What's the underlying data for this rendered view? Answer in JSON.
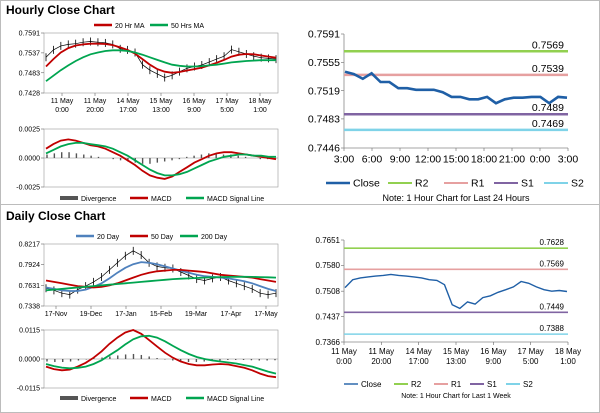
{
  "hourly_title": "Hourly Close Chart",
  "daily_title": "Daily Close Chart",
  "chart_data": [
    {
      "id": "hourly-price",
      "type": "line",
      "legend": [
        "20 Hr MA",
        "50 Hrs MA"
      ],
      "y_ticks": [
        "0.7591",
        "0.7537",
        "0.7483",
        "0.7428"
      ],
      "ylim": [
        0.7428,
        0.7591
      ],
      "x_ticks": [
        [
          "11 May",
          "0:00"
        ],
        [
          "11 May",
          "20:00"
        ],
        [
          "14 May",
          "17:00"
        ],
        [
          "15 May",
          "13:00"
        ],
        [
          "16 May",
          "9:00"
        ],
        [
          "17 May",
          "5:00"
        ],
        [
          "18 May",
          "1:00"
        ]
      ],
      "series": [
        {
          "name": "Close",
          "color": "#000000",
          "values": [
            0.7525,
            0.7545,
            0.7556,
            0.756,
            0.7562,
            0.7566,
            0.7568,
            0.7566,
            0.7564,
            0.756,
            0.7548,
            0.7545,
            0.7538,
            0.7505,
            0.749,
            0.748,
            0.747,
            0.7476,
            0.7486,
            0.7495,
            0.75,
            0.7504,
            0.7512,
            0.752,
            0.7528,
            0.7546,
            0.754,
            0.7534,
            0.7528,
            0.7524,
            0.7522,
            0.752
          ]
        },
        {
          "name": "20 Hr MA",
          "color": "#c00000",
          "values": [
            0.75,
            0.752,
            0.7538,
            0.755,
            0.7557,
            0.756,
            0.7562,
            0.7562,
            0.7561,
            0.7558,
            0.7552,
            0.7545,
            0.7535,
            0.752,
            0.7505,
            0.7493,
            0.7486,
            0.7483,
            0.7485,
            0.7489,
            0.7493,
            0.7497,
            0.7503,
            0.751,
            0.7518,
            0.7527,
            0.7532,
            0.7534,
            0.7533,
            0.753,
            0.7527,
            0.7524
          ]
        },
        {
          "name": "50 Hrs MA",
          "color": "#00a550",
          "values": [
            0.746,
            0.7475,
            0.749,
            0.7503,
            0.7515,
            0.7525,
            0.7533,
            0.7538,
            0.7542,
            0.7544,
            0.7544,
            0.7542,
            0.7538,
            0.7532,
            0.7525,
            0.7518,
            0.7511,
            0.7505,
            0.7502,
            0.75,
            0.75,
            0.7501,
            0.7503,
            0.7505,
            0.7508,
            0.7511,
            0.7513,
            0.7515,
            0.7516,
            0.7517,
            0.7517,
            0.7517
          ]
        }
      ]
    },
    {
      "id": "hourly-macd",
      "type": "line",
      "y_ticks": [
        "0.0025",
        "0.0000",
        "-0.0025"
      ],
      "ylim": [
        -0.0025,
        0.0025
      ],
      "legend": [
        "Divergence",
        "MACD",
        "MACD Signal Line"
      ],
      "histogram": [
        0.0003,
        0.0004,
        0.0005,
        0.0005,
        0.0004,
        0.0003,
        0.0002,
        0.0001,
        0.0,
        -0.0001,
        -0.0002,
        -0.0003,
        -0.0004,
        -0.0005,
        -0.0005,
        -0.0004,
        -0.0003,
        -0.0002,
        -0.0001,
        0.0001,
        0.0002,
        0.0003,
        0.0004,
        0.0004,
        0.0003,
        0.0003,
        0.0002,
        0.0001,
        0.0,
        -0.0001,
        -0.0001,
        -0.0001
      ],
      "series": [
        {
          "name": "MACD",
          "color": "#c00000",
          "values": [
            0.0008,
            0.0012,
            0.0015,
            0.0016,
            0.0015,
            0.0013,
            0.0011,
            0.001,
            0.0008,
            0.0005,
            0.0002,
            -0.0002,
            -0.0006,
            -0.0011,
            -0.0015,
            -0.0017,
            -0.0018,
            -0.0016,
            -0.0012,
            -0.0008,
            -0.0004,
            -0.0001,
            0.0002,
            0.0004,
            0.0005,
            0.0005,
            0.0004,
            0.0003,
            0.0002,
            0.0001,
            0.0,
            -0.0001
          ]
        },
        {
          "name": "MACD Signal Line",
          "color": "#00a550",
          "values": [
            0.0004,
            0.0007,
            0.001,
            0.0012,
            0.0013,
            0.0013,
            0.0012,
            0.0011,
            0.001,
            0.0008,
            0.0005,
            0.0002,
            -0.0002,
            -0.0006,
            -0.001,
            -0.0013,
            -0.0015,
            -0.0015,
            -0.0014,
            -0.0012,
            -0.0009,
            -0.0006,
            -0.0003,
            -0.0001,
            0.0001,
            0.0002,
            0.0003,
            0.0003,
            0.0002,
            0.0002,
            0.0001,
            0.0001
          ]
        }
      ]
    },
    {
      "id": "hourly-24h",
      "type": "line",
      "y_ticks": [
        "0.7591",
        "0.7555",
        "0.7519",
        "0.7483",
        "0.7446"
      ],
      "ylim": [
        0.7446,
        0.7591
      ],
      "x_ticks": [
        "3:00",
        "6:00",
        "9:00",
        "12:00",
        "15:00",
        "18:00",
        "21:00",
        "0:00",
        "3:00"
      ],
      "levels": [
        {
          "name": "R2",
          "value": 0.7569,
          "label": "0.7569",
          "color": "#92d050"
        },
        {
          "name": "R1",
          "value": 0.7539,
          "label": "0.7539",
          "color": "#e6a0a0"
        },
        {
          "name": "S1",
          "value": 0.7489,
          "label": "0.7489",
          "color": "#8064a2"
        },
        {
          "name": "S2",
          "value": 0.7469,
          "label": "0.7469",
          "color": "#7fd3e8"
        }
      ],
      "series": [
        {
          "name": "Close",
          "color": "#1f5fa6",
          "values": [
            0.7543,
            0.754,
            0.7534,
            0.7541,
            0.753,
            0.753,
            0.7522,
            0.7522,
            0.752,
            0.752,
            0.752,
            0.7517,
            0.7511,
            0.7511,
            0.7508,
            0.7508,
            0.7511,
            0.7503,
            0.7508,
            0.751,
            0.751,
            0.7511,
            0.7511,
            0.7503,
            0.7511,
            0.751
          ]
        }
      ],
      "legend": [
        "Close",
        "R2",
        "R1",
        "S1",
        "S2"
      ],
      "note": "Note: 1 Hour Chart for Last 24 Hours"
    },
    {
      "id": "daily-price",
      "type": "line",
      "legend": [
        "20 Day",
        "50 Day",
        "200 Day"
      ],
      "y_ticks": [
        "0.8217",
        "0.7924",
        "0.7631",
        "0.7338"
      ],
      "ylim": [
        0.7338,
        0.8217
      ],
      "x_ticks": [
        "17-Nov",
        "19-Dec",
        "17-Jan",
        "15-Feb",
        "19-Mar",
        "17-Apr",
        "17-May"
      ],
      "series": [
        {
          "name": "Close",
          "color": "#000000",
          "values": [
            0.759,
            0.756,
            0.752,
            0.75,
            0.757,
            0.762,
            0.768,
            0.775,
            0.785,
            0.795,
            0.805,
            0.812,
            0.806,
            0.795,
            0.79,
            0.788,
            0.787,
            0.782,
            0.777,
            0.772,
            0.77,
            0.773,
            0.775,
            0.77,
            0.766,
            0.762,
            0.758,
            0.752,
            0.75,
            0.752
          ]
        },
        {
          "name": "20 Day",
          "color": "#4f81bd",
          "values": [
            0.76,
            0.758,
            0.756,
            0.755,
            0.755,
            0.757,
            0.761,
            0.766,
            0.773,
            0.781,
            0.788,
            0.793,
            0.796,
            0.795,
            0.793,
            0.79,
            0.787,
            0.784,
            0.781,
            0.778,
            0.776,
            0.775,
            0.774,
            0.773,
            0.771,
            0.769,
            0.766,
            0.762,
            0.758,
            0.755
          ]
        },
        {
          "name": "50 Day",
          "color": "#c00000",
          "values": [
            0.77,
            0.768,
            0.766,
            0.764,
            0.762,
            0.761,
            0.76,
            0.761,
            0.763,
            0.766,
            0.77,
            0.774,
            0.778,
            0.781,
            0.783,
            0.784,
            0.785,
            0.785,
            0.784,
            0.783,
            0.782,
            0.78,
            0.778,
            0.777,
            0.776,
            0.775,
            0.774,
            0.772,
            0.77,
            0.768
          ]
        },
        {
          "name": "200 Day",
          "color": "#00a550",
          "values": [
            0.756,
            0.757,
            0.758,
            0.759,
            0.76,
            0.761,
            0.762,
            0.763,
            0.764,
            0.765,
            0.766,
            0.767,
            0.768,
            0.769,
            0.77,
            0.771,
            0.772,
            0.7725,
            0.773,
            0.7735,
            0.774,
            0.7745,
            0.7748,
            0.775,
            0.7752,
            0.7752,
            0.775,
            0.7748,
            0.7745,
            0.774
          ]
        }
      ]
    },
    {
      "id": "daily-macd",
      "type": "line",
      "y_ticks": [
        "0.0115",
        "0.0000",
        "-0.0115"
      ],
      "ylim": [
        -0.0115,
        0.0115
      ],
      "legend": [
        "Divergence",
        "MACD",
        "MACD Signal Line"
      ],
      "histogram": [
        -0.001,
        -0.0012,
        -0.0012,
        -0.001,
        -0.0006,
        -0.0002,
        0.0002,
        0.0006,
        0.001,
        0.0014,
        0.0018,
        0.002,
        0.0016,
        0.001,
        0.0004,
        -0.0002,
        -0.0006,
        -0.001,
        -0.0012,
        -0.0012,
        -0.001,
        -0.0008,
        -0.0006,
        -0.0004,
        -0.0004,
        -0.0004,
        -0.0005,
        -0.0006,
        -0.0006,
        -0.0005
      ],
      "series": [
        {
          "name": "MACD",
          "color": "#c00000",
          "values": [
            -0.003,
            -0.004,
            -0.0045,
            -0.0042,
            -0.003,
            -0.0015,
            0.0005,
            0.003,
            0.006,
            0.0085,
            0.0105,
            0.0115,
            0.01,
            0.0075,
            0.005,
            0.0025,
            0.0005,
            -0.001,
            -0.002,
            -0.0025,
            -0.0025,
            -0.0022,
            -0.002,
            -0.0022,
            -0.0028,
            -0.0035,
            -0.0045,
            -0.0058,
            -0.0068,
            -0.0072
          ]
        },
        {
          "name": "MACD Signal Line",
          "color": "#00a550",
          "values": [
            -0.002,
            -0.0028,
            -0.0034,
            -0.0037,
            -0.0035,
            -0.003,
            -0.002,
            -0.0005,
            0.0015,
            0.0035,
            0.0058,
            0.0078,
            0.009,
            0.0092,
            0.0085,
            0.007,
            0.0052,
            0.0035,
            0.002,
            0.0008,
            0.0,
            -0.0006,
            -0.001,
            -0.0014,
            -0.0018,
            -0.0024,
            -0.003,
            -0.004,
            -0.005,
            -0.0058
          ]
        }
      ]
    },
    {
      "id": "daily-week",
      "type": "line",
      "y_ticks": [
        "0.7651",
        "0.7580",
        "0.7508",
        "0.7437",
        "0.7366"
      ],
      "ylim": [
        0.7366,
        0.7651
      ],
      "x_ticks": [
        [
          "11 May",
          "0:00"
        ],
        [
          "11 May",
          "20:00"
        ],
        [
          "14 May",
          "17:00"
        ],
        [
          "15 May",
          "13:00"
        ],
        [
          "16 May",
          "9:00"
        ],
        [
          "17 May",
          "5:00"
        ],
        [
          "18 May",
          "1:00"
        ]
      ],
      "levels": [
        {
          "name": "R2",
          "value": 0.7628,
          "label": "0.7628",
          "color": "#92d050"
        },
        {
          "name": "R1",
          "value": 0.7569,
          "label": "0.7569",
          "color": "#e6a0a0"
        },
        {
          "name": "S1",
          "value": 0.7449,
          "label": "0.7449",
          "color": "#8064a2"
        },
        {
          "name": "S2",
          "value": 0.7388,
          "label": "0.7388",
          "color": "#7fd3e8"
        }
      ],
      "series": [
        {
          "name": "Close",
          "color": "#1f5fa6",
          "values": [
            0.7518,
            0.754,
            0.7545,
            0.7548,
            0.755,
            0.7552,
            0.7555,
            0.7552,
            0.755,
            0.7548,
            0.7545,
            0.754,
            0.7538,
            0.7526,
            0.747,
            0.746,
            0.7478,
            0.7472,
            0.749,
            0.7495,
            0.7505,
            0.7512,
            0.752,
            0.7535,
            0.753,
            0.752,
            0.7512,
            0.7508,
            0.751,
            0.7507
          ]
        }
      ],
      "legend": [
        "Close",
        "R2",
        "R1",
        "S1",
        "S2"
      ],
      "note": "Note: 1 Hour Chart for Last 1 Week"
    }
  ]
}
